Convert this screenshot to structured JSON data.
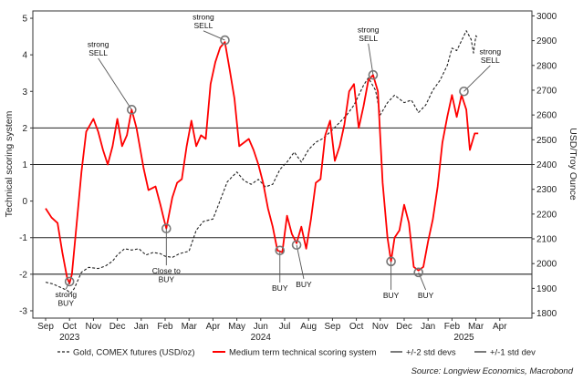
{
  "chart_data": {
    "type": "line",
    "left_axis_title": "Technical scoring system",
    "right_axis_title": "USD/Troy Ounce",
    "left_ticks": [
      5,
      4,
      3,
      2,
      1,
      0,
      -1,
      -2,
      -3
    ],
    "right_ticks": [
      3000,
      2900,
      2800,
      2700,
      2600,
      2500,
      2400,
      2300,
      2200,
      2100,
      2000,
      1900,
      1800
    ],
    "x_months": [
      "Sep",
      "Oct",
      "Nov",
      "Dec",
      "Jan",
      "Feb",
      "Mar",
      "Apr",
      "May",
      "Jun",
      "Jul",
      "Aug",
      "Sep",
      "Oct",
      "Nov",
      "Dec",
      "Jan",
      "Feb",
      "Mar",
      "Apr"
    ],
    "x_years": [
      {
        "label": "2023",
        "month_index": 1
      },
      {
        "label": "2024",
        "month_index": 9
      },
      {
        "label": "2025",
        "month_index": 17.5
      }
    ],
    "ylim_left": [
      -3.2,
      5.2
    ],
    "ylim_right": [
      1780,
      3020
    ],
    "hlines": [
      2,
      1,
      -1,
      -2
    ],
    "series": [
      {
        "name": "Gold, COMEX futures (USD/oz)",
        "axis": "right",
        "color": "#222222",
        "dash": "3,2",
        "points": [
          [
            0,
            1925
          ],
          [
            0.3,
            1918
          ],
          [
            0.6,
            1905
          ],
          [
            0.9,
            1892
          ],
          [
            1.05,
            1880
          ],
          [
            1.2,
            1900
          ],
          [
            1.5,
            1965
          ],
          [
            1.8,
            1985
          ],
          [
            2.2,
            1980
          ],
          [
            2.5,
            1990
          ],
          [
            2.8,
            2010
          ],
          [
            3.0,
            2035
          ],
          [
            3.3,
            2060
          ],
          [
            3.6,
            2055
          ],
          [
            3.9,
            2060
          ],
          [
            4.2,
            2035
          ],
          [
            4.5,
            2045
          ],
          [
            4.8,
            2040
          ],
          [
            5.0,
            2030
          ],
          [
            5.3,
            2025
          ],
          [
            5.6,
            2040
          ],
          [
            6.0,
            2050
          ],
          [
            6.3,
            2135
          ],
          [
            6.6,
            2170
          ],
          [
            7.0,
            2180
          ],
          [
            7.3,
            2255
          ],
          [
            7.6,
            2330
          ],
          [
            8.0,
            2370
          ],
          [
            8.3,
            2335
          ],
          [
            8.6,
            2320
          ],
          [
            8.9,
            2340
          ],
          [
            9.2,
            2310
          ],
          [
            9.5,
            2320
          ],
          [
            9.8,
            2380
          ],
          [
            10.1,
            2410
          ],
          [
            10.4,
            2450
          ],
          [
            10.7,
            2410
          ],
          [
            11.0,
            2460
          ],
          [
            11.3,
            2490
          ],
          [
            11.6,
            2505
          ],
          [
            12.0,
            2540
          ],
          [
            12.3,
            2570
          ],
          [
            12.6,
            2600
          ],
          [
            12.9,
            2640
          ],
          [
            13.1,
            2680
          ],
          [
            13.3,
            2720
          ],
          [
            13.5,
            2750
          ],
          [
            13.8,
            2700
          ],
          [
            14.0,
            2600
          ],
          [
            14.3,
            2650
          ],
          [
            14.6,
            2680
          ],
          [
            15.0,
            2650
          ],
          [
            15.3,
            2660
          ],
          [
            15.6,
            2610
          ],
          [
            15.9,
            2640
          ],
          [
            16.2,
            2700
          ],
          [
            16.5,
            2740
          ],
          [
            16.8,
            2800
          ],
          [
            17.0,
            2870
          ],
          [
            17.2,
            2860
          ],
          [
            17.4,
            2900
          ],
          [
            17.6,
            2940
          ],
          [
            17.8,
            2905
          ],
          [
            17.9,
            2850
          ],
          [
            18.0,
            2920
          ],
          [
            18.1,
            2910
          ]
        ]
      },
      {
        "name": "Medium term technical scoring system",
        "axis": "left",
        "color": "#ff0000",
        "points": [
          [
            0,
            -0.2
          ],
          [
            0.25,
            -0.45
          ],
          [
            0.5,
            -0.6
          ],
          [
            0.7,
            -1.4
          ],
          [
            0.9,
            -2.1
          ],
          [
            1.0,
            -2.25
          ],
          [
            1.1,
            -2.0
          ],
          [
            1.3,
            -0.6
          ],
          [
            1.5,
            0.8
          ],
          [
            1.7,
            1.9
          ],
          [
            2.0,
            2.25
          ],
          [
            2.2,
            1.9
          ],
          [
            2.4,
            1.4
          ],
          [
            2.6,
            1.0
          ],
          [
            2.8,
            1.5
          ],
          [
            3.0,
            2.25
          ],
          [
            3.2,
            1.5
          ],
          [
            3.4,
            1.8
          ],
          [
            3.6,
            2.5
          ],
          [
            3.8,
            2.0
          ],
          [
            4.1,
            0.9
          ],
          [
            4.3,
            0.3
          ],
          [
            4.6,
            0.4
          ],
          [
            4.8,
            -0.1
          ],
          [
            4.95,
            -0.5
          ],
          [
            5.05,
            -0.75
          ],
          [
            5.3,
            0.1
          ],
          [
            5.5,
            0.5
          ],
          [
            5.7,
            0.6
          ],
          [
            5.9,
            1.5
          ],
          [
            6.1,
            2.2
          ],
          [
            6.3,
            1.5
          ],
          [
            6.5,
            1.8
          ],
          [
            6.7,
            1.7
          ],
          [
            6.9,
            3.2
          ],
          [
            7.1,
            3.8
          ],
          [
            7.3,
            4.2
          ],
          [
            7.5,
            4.35
          ],
          [
            7.7,
            3.6
          ],
          [
            7.9,
            2.8
          ],
          [
            8.1,
            1.5
          ],
          [
            8.3,
            1.6
          ],
          [
            8.5,
            1.7
          ],
          [
            8.7,
            1.4
          ],
          [
            8.9,
            1.0
          ],
          [
            9.1,
            0.5
          ],
          [
            9.3,
            -0.2
          ],
          [
            9.5,
            -0.7
          ],
          [
            9.7,
            -1.35
          ],
          [
            9.9,
            -1.4
          ],
          [
            10.1,
            -0.4
          ],
          [
            10.3,
            -0.9
          ],
          [
            10.5,
            -1.15
          ],
          [
            10.7,
            -0.7
          ],
          [
            10.9,
            -1.3
          ],
          [
            11.1,
            -0.5
          ],
          [
            11.3,
            0.5
          ],
          [
            11.5,
            0.6
          ],
          [
            11.7,
            1.8
          ],
          [
            11.9,
            2.2
          ],
          [
            12.1,
            1.1
          ],
          [
            12.3,
            1.5
          ],
          [
            12.5,
            2.1
          ],
          [
            12.7,
            3.0
          ],
          [
            12.9,
            3.2
          ],
          [
            13.1,
            2.0
          ],
          [
            13.3,
            2.6
          ],
          [
            13.5,
            3.3
          ],
          [
            13.7,
            3.45
          ],
          [
            13.9,
            3.0
          ],
          [
            14.1,
            0.5
          ],
          [
            14.3,
            -1.0
          ],
          [
            14.45,
            -1.65
          ],
          [
            14.6,
            -1.0
          ],
          [
            14.8,
            -0.8
          ],
          [
            15.0,
            -0.1
          ],
          [
            15.2,
            -0.6
          ],
          [
            15.4,
            -1.8
          ],
          [
            15.6,
            -1.9
          ],
          [
            15.8,
            -1.8
          ],
          [
            16.0,
            -1.1
          ],
          [
            16.2,
            -0.5
          ],
          [
            16.4,
            0.4
          ],
          [
            16.6,
            1.6
          ],
          [
            16.8,
            2.3
          ],
          [
            17.0,
            2.9
          ],
          [
            17.2,
            2.3
          ],
          [
            17.4,
            2.9
          ],
          [
            17.6,
            2.5
          ],
          [
            17.75,
            1.4
          ],
          [
            17.95,
            1.85
          ],
          [
            18.1,
            1.85
          ]
        ]
      },
      {
        "name": "+/-2 std devs",
        "color": "#222222"
      },
      {
        "name": "+/-1 std dev",
        "color": "#222222"
      }
    ],
    "annotations": [
      {
        "text": "strong\nSELL",
        "x": 3.6,
        "y": 2.5,
        "label_x": 2.2,
        "label_y": 4.1
      },
      {
        "text": "strong\nSELL",
        "x": 7.5,
        "y": 4.4,
        "label_x": 6.6,
        "label_y": 4.85
      },
      {
        "text": "strong\nSELL",
        "x": 13.7,
        "y": 3.45,
        "label_x": 13.5,
        "label_y": 4.5
      },
      {
        "text": "strong\nSELL",
        "x": 17.5,
        "y": 3.0,
        "label_x": 18.6,
        "label_y": 3.9
      },
      {
        "text": "strong\nBUY",
        "x": 1.0,
        "y": -2.2,
        "label_x": 0.85,
        "label_y": -2.75
      },
      {
        "text": "Close to\nBUY",
        "x": 5.05,
        "y": -0.75,
        "label_x": 5.05,
        "label_y": -2.1
      },
      {
        "text": "BUY",
        "x": 9.8,
        "y": -1.35,
        "label_x": 9.8,
        "label_y": -2.45
      },
      {
        "text": "BUY",
        "x": 10.5,
        "y": -1.2,
        "label_x": 10.8,
        "label_y": -2.35
      },
      {
        "text": "BUY",
        "x": 14.45,
        "y": -1.65,
        "label_x": 14.45,
        "label_y": -2.65
      },
      {
        "text": "BUY",
        "x": 15.6,
        "y": -1.95,
        "label_x": 15.9,
        "label_y": -2.65
      }
    ]
  },
  "legend": [
    {
      "label": "Gold, COMEX futures (USD/oz)",
      "style": "dashed"
    },
    {
      "label": "Medium term technical scoring system",
      "style": "red"
    },
    {
      "label": "+/-2 std devs",
      "style": "solid"
    },
    {
      "label": "+/-1 std dev",
      "style": "solid"
    }
  ],
  "source": "Source: Longview Economics, Macrobond"
}
